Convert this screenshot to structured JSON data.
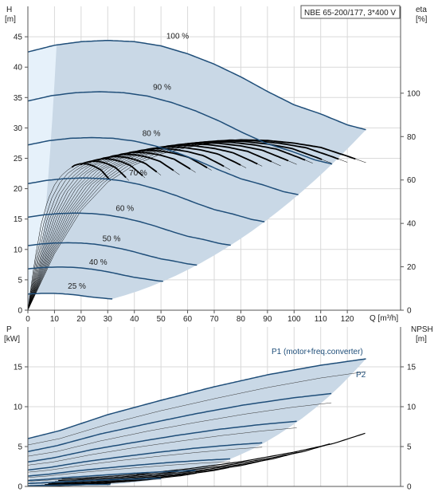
{
  "chart_data": [
    {
      "type": "line",
      "id": "head",
      "title": "NBE 65-200/177, 3*400 V",
      "xlabel": "Q [m³/h]",
      "ylabel_left_symbol": "H",
      "ylabel_left_unit": "[m]",
      "ylabel_right_symbol": "eta",
      "ylabel_right_unit": "[%]",
      "xlim": [
        0,
        140
      ],
      "ylim": [
        0,
        50
      ],
      "eta_lim": [
        0,
        140
      ],
      "x_ticks": [
        0,
        10,
        20,
        30,
        40,
        50,
        60,
        70,
        80,
        90,
        100,
        110,
        120
      ],
      "y_ticks": [
        0,
        5,
        10,
        15,
        20,
        25,
        30,
        35,
        40,
        45
      ],
      "eta_ticks": [
        0,
        20,
        40,
        60,
        80,
        100
      ],
      "grid": true,
      "operating_region_color": "#c9d8e6",
      "low_flow_region_color": "#e6f1fa",
      "speed_curve_color": "#1f4e79",
      "eta_curve_color": "#000000",
      "speed_curves": [
        {
          "label": "100 %",
          "speed": 1.0,
          "label_q": 52,
          "label_h": 44.4
        },
        {
          "label": "90 %",
          "speed": 0.9,
          "label_q": 47,
          "label_h": 36.0
        },
        {
          "label": "80 %",
          "speed": 0.8,
          "label_q": 43,
          "label_h": 28.4
        },
        {
          "label": "70 %",
          "speed": 0.7,
          "label_q": 38,
          "label_h": 21.9
        },
        {
          "label": "60 %",
          "speed": 0.6,
          "label_q": 33,
          "label_h": 16.1
        },
        {
          "label": "50 %",
          "speed": 0.5,
          "label_q": 28,
          "label_h": 11.1
        },
        {
          "label": "40 %",
          "speed": 0.4,
          "label_q": 23,
          "label_h": 7.2
        },
        {
          "label": "25 %",
          "speed": 0.25,
          "label_q": 15,
          "label_h": 3.3
        }
      ],
      "head_curve_full_speed": {
        "q": [
          0,
          10,
          20,
          30,
          40,
          50,
          60,
          70,
          80,
          90,
          100,
          110,
          120,
          127
        ],
        "h": [
          42.5,
          43.6,
          44.2,
          44.4,
          44.2,
          43.5,
          42.2,
          40.5,
          38.4,
          36.0,
          33.8,
          32.3,
          30.5,
          29.7
        ]
      },
      "speed_levels": [
        1.0,
        0.9,
        0.8,
        0.7,
        0.6,
        0.5,
        0.4,
        0.25
      ],
      "eta_curve_full_speed": {
        "q": [
          0,
          10,
          20,
          30,
          40,
          50,
          60,
          70,
          80,
          90,
          100,
          110,
          120,
          127
        ],
        "eta": [
          0,
          26,
          46,
          59,
          67,
          72,
          75,
          77.5,
          78.5,
          78.2,
          77,
          75,
          71,
          68
        ]
      }
    },
    {
      "type": "line",
      "id": "power",
      "ylabel_left_symbol": "P",
      "ylabel_left_unit": "[kW]",
      "ylabel_right_symbol": "NPSH",
      "ylabel_right_unit": "[m]",
      "xlim": [
        0,
        140
      ],
      "ylim": [
        0,
        20
      ],
      "y_ticks": [
        0,
        5,
        10,
        15
      ],
      "npsh_ticks": [
        0,
        5,
        10,
        15
      ],
      "grid": true,
      "series_labels": {
        "p1": "P1 (motor+freq.converter)",
        "p2": "P2"
      },
      "p1_full_speed": {
        "q": [
          0,
          12,
          30,
          50,
          70,
          90,
          110,
          127
        ],
        "p": [
          6.0,
          7.0,
          9.0,
          10.8,
          12.5,
          14.0,
          15.2,
          16.0
        ]
      },
      "p2_full_speed": {
        "q": [
          0,
          12,
          30,
          50,
          70,
          90,
          110,
          127
        ],
        "p": [
          5.2,
          6.0,
          7.8,
          9.5,
          11.0,
          12.4,
          13.6,
          14.4
        ]
      },
      "npsh_full_speed": {
        "q": [
          0,
          20,
          40,
          60,
          80,
          100,
          115,
          127
        ],
        "npsh": [
          0.8,
          1.0,
          1.5,
          2.2,
          3.1,
          4.3,
          5.4,
          6.7
        ]
      },
      "speed_levels": [
        1.0,
        0.9,
        0.8,
        0.7,
        0.6,
        0.5,
        0.4,
        0.25
      ]
    }
  ]
}
